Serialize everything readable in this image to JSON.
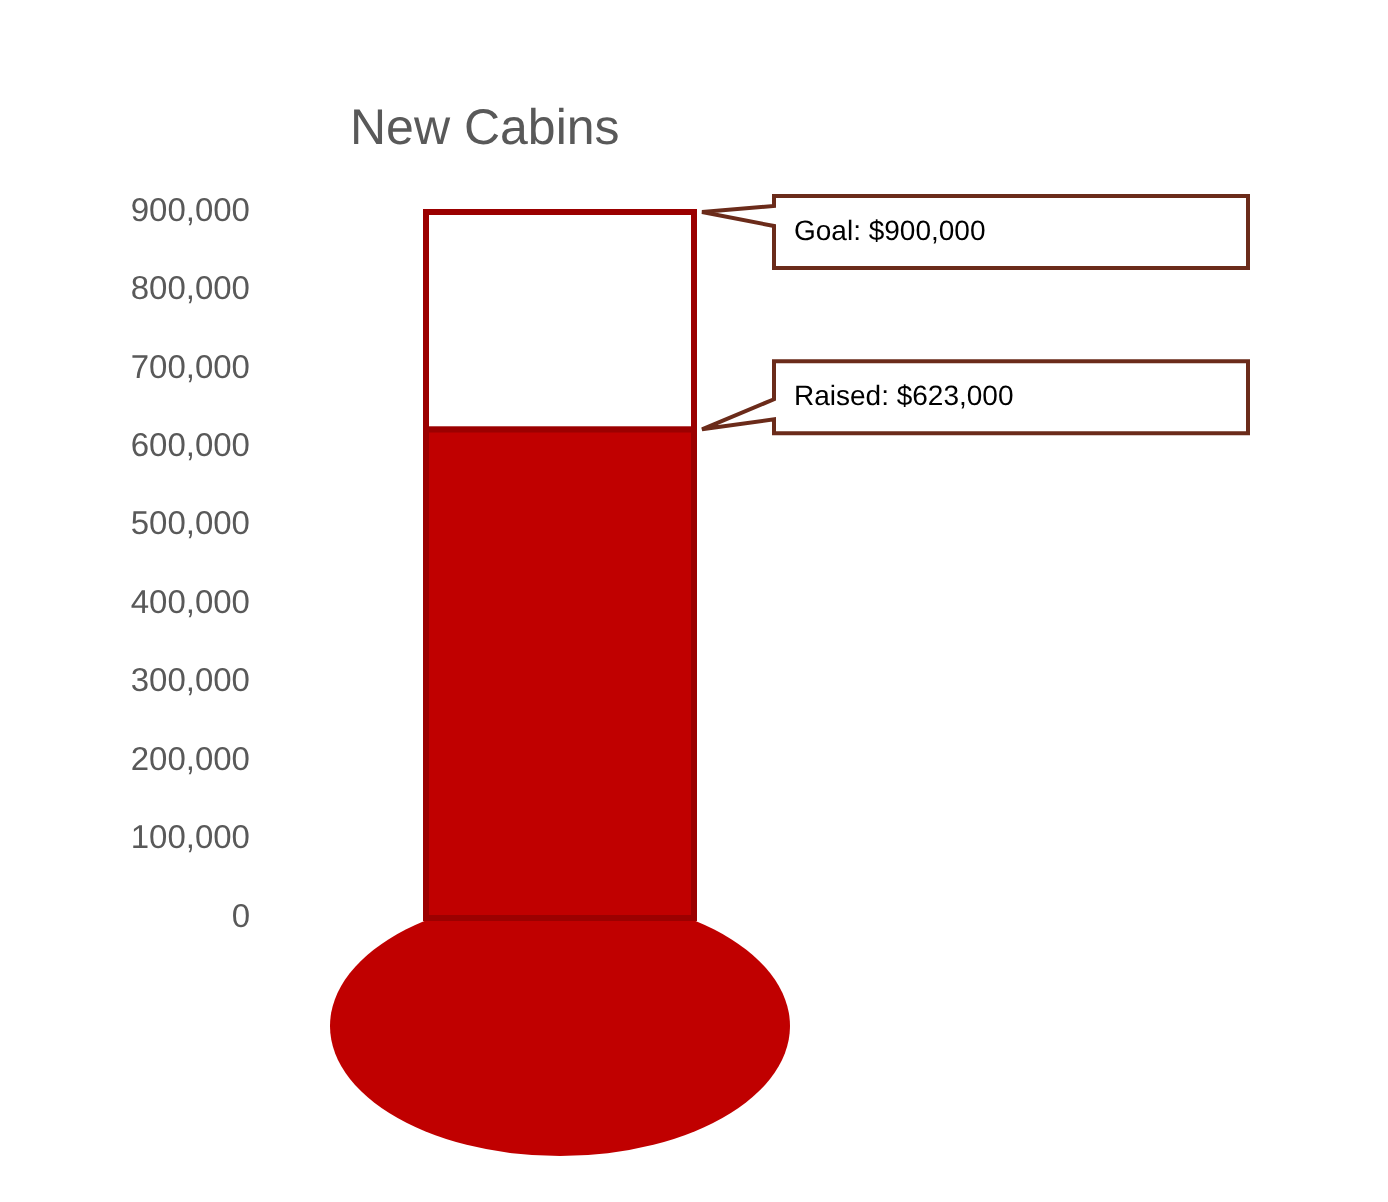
{
  "chart_data": {
    "type": "bar",
    "title": "New Cabins",
    "categories": [
      null
    ],
    "stacked": true,
    "series": [
      {
        "color": "#c00000",
        "values": [
          623000
        ]
      },
      {
        "color": "#ffffff",
        "values": [
          277000
        ]
      }
    ],
    "ylim": [
      0,
      900000
    ],
    "yticks": [
      {
        "value": 0,
        "label": "0"
      },
      {
        "value": 100000,
        "label": "100,000"
      },
      {
        "value": 200000,
        "label": "200,000"
      },
      {
        "value": 300000,
        "label": "300,000"
      },
      {
        "value": 400000,
        "label": "400,000"
      },
      {
        "value": 500000,
        "label": "500,000"
      },
      {
        "value": 600000,
        "label": "600,000"
      },
      {
        "value": 700000,
        "label": "700,000"
      },
      {
        "value": 800000,
        "label": "800,000"
      },
      {
        "value": 900000,
        "label": "900,000"
      }
    ],
    "tick_labels": "y",
    "annotations": [
      "Goal: $900,000",
      "Raised: $623,000"
    ]
  }
}
